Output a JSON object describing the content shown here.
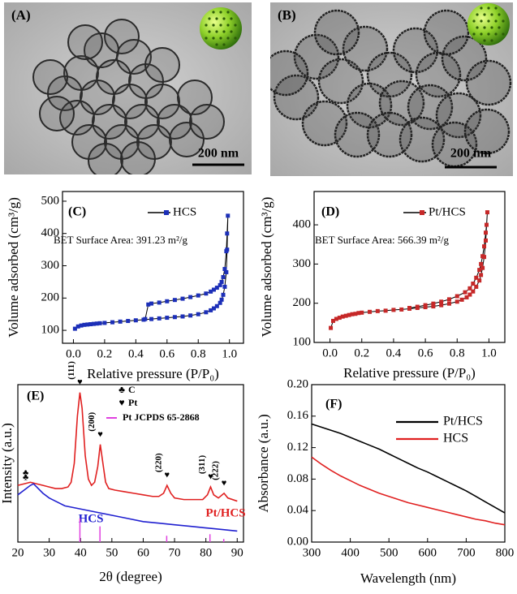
{
  "images": [
    {
      "label": "(A)",
      "scale_bar": "200 nm"
    },
    {
      "label": "(B)",
      "scale_bar": "200 nm"
    }
  ],
  "chart_data": [
    {
      "type": "line",
      "label": "(C)",
      "xlabel": "Relative pressure (P/P₀)",
      "ylabel": "Volume adsorbed (cm³/g)",
      "annotation": "BET Surface Area: 391.23 m²/g",
      "xlim": [
        -0.07,
        1.09
      ],
      "ylim": [
        60,
        530
      ],
      "xticks": [
        {
          "value": 0,
          "label": "0.0"
        },
        0.2,
        0.4,
        0.6,
        0.8,
        {
          "value": 1,
          "label": "1.0"
        }
      ],
      "yticks": [
        100,
        200,
        300,
        400,
        500
      ],
      "legend": "upper right",
      "series": [
        {
          "name": "HCS",
          "color": "#1c2fb8",
          "marker": "square",
          "x": [
            0.01,
            0.03,
            0.05,
            0.07,
            0.09,
            0.11,
            0.13,
            0.15,
            0.17,
            0.2,
            0.25,
            0.3,
            0.35,
            0.4,
            0.45,
            0.5,
            0.55,
            0.6,
            0.65,
            0.7,
            0.75,
            0.8,
            0.85,
            0.88,
            0.9,
            0.92,
            0.94,
            0.95,
            0.96,
            0.97,
            0.98,
            0.985,
            0.99,
            0.985,
            0.98,
            0.97,
            0.96,
            0.95,
            0.94,
            0.92,
            0.9,
            0.88,
            0.85,
            0.8,
            0.75,
            0.7,
            0.65,
            0.6,
            0.55,
            0.5,
            0.48,
            0.46
          ],
          "values": [
            105,
            112,
            115,
            117,
            118,
            119,
            120,
            121,
            122,
            123,
            125,
            127,
            129,
            131,
            133,
            135,
            137,
            139,
            141,
            143,
            146,
            150,
            156,
            162,
            168,
            175,
            185,
            195,
            210,
            235,
            280,
            350,
            455,
            400,
            345,
            290,
            265,
            250,
            240,
            232,
            226,
            220,
            214,
            208,
            203,
            198,
            194,
            190,
            186,
            183,
            180,
            135
          ]
        }
      ]
    },
    {
      "type": "line",
      "label": "(D)",
      "xlabel": "Relative pressure (P/P₀)",
      "ylabel": "Volume adsorbed (cm³/g)",
      "annotation": "BET Surface Area: 566.39 m²/g",
      "xlim": [
        -0.1,
        1.1
      ],
      "ylim": [
        100,
        485
      ],
      "xticks": [
        {
          "value": 0,
          "label": "0.0"
        },
        0.2,
        0.4,
        0.6,
        0.8,
        {
          "value": 1,
          "label": "1.0"
        }
      ],
      "yticks": [
        100,
        200,
        300,
        400
      ],
      "legend": "upper right",
      "series": [
        {
          "name": "Pt/HCS",
          "color": "#c62828",
          "marker": "square",
          "x": [
            0.005,
            0.02,
            0.04,
            0.06,
            0.08,
            0.1,
            0.12,
            0.14,
            0.16,
            0.18,
            0.2,
            0.25,
            0.3,
            0.35,
            0.4,
            0.45,
            0.5,
            0.55,
            0.6,
            0.65,
            0.7,
            0.75,
            0.8,
            0.83,
            0.86,
            0.88,
            0.9,
            0.92,
            0.94,
            0.95,
            0.96,
            0.97,
            0.98,
            0.99,
            0.985,
            0.98,
            0.97,
            0.96,
            0.95,
            0.94,
            0.92,
            0.9,
            0.88,
            0.85,
            0.8,
            0.75,
            0.7,
            0.65,
            0.6,
            0.55,
            0.5
          ],
          "values": [
            137,
            155,
            160,
            163,
            166,
            168,
            170,
            172,
            173,
            175,
            176,
            178,
            180,
            181,
            183,
            184,
            186,
            188,
            190,
            192,
            195,
            199,
            204,
            209,
            215,
            222,
            230,
            242,
            258,
            272,
            290,
            318,
            360,
            432,
            400,
            380,
            345,
            320,
            300,
            285,
            265,
            250,
            238,
            228,
            218,
            210,
            204,
            199,
            195,
            191,
            188
          ]
        }
      ]
    },
    {
      "type": "line",
      "label": "(E)",
      "xlabel": "2θ (degree)",
      "ylabel": "Intensity (a.u.)",
      "xlim": [
        20,
        92
      ],
      "ylim": [
        0,
        100
      ],
      "xticks": [
        20,
        30,
        40,
        50,
        60,
        70,
        80,
        90
      ],
      "legend": "inline",
      "series": [
        {
          "name": "Pt/HCS",
          "color": "#e02020",
          "x": [
            20,
            22,
            24,
            26,
            28,
            30,
            32,
            34,
            36,
            37,
            38,
            39,
            39.8,
            40.5,
            41.5,
            42.5,
            43.5,
            44.5,
            45.5,
            46.3,
            47,
            48,
            49,
            51,
            54,
            57,
            60,
            63,
            65,
            66.5,
            67.6,
            68.8,
            70,
            73,
            76,
            79,
            80.5,
            81.5,
            82.5,
            84,
            85.8,
            87,
            90
          ],
          "values": [
            36,
            37,
            38,
            37,
            36,
            35,
            34,
            34,
            35,
            38,
            50,
            80,
            95,
            85,
            55,
            40,
            36,
            38,
            48,
            62,
            52,
            38,
            34,
            33,
            32,
            31,
            30,
            29,
            29,
            31,
            36,
            31,
            28,
            27,
            27,
            27,
            30,
            35,
            30,
            28,
            31,
            28,
            26
          ]
        },
        {
          "name": "HCS",
          "color": "#2020d0",
          "x": [
            20,
            22,
            24,
            25,
            26,
            28,
            30,
            32,
            35,
            40,
            45,
            50,
            55,
            60,
            65,
            70,
            75,
            80,
            85,
            90
          ],
          "values": [
            30,
            33,
            36,
            37,
            35,
            31,
            28,
            26,
            23,
            21,
            19,
            17,
            15,
            13,
            12,
            11,
            10,
            9,
            8,
            7
          ]
        },
        {
          "name": "Pt JCPDS 65-2868",
          "color": "#e040e0",
          "style": "stick",
          "x": [
            39.8,
            46.2,
            67.5,
            81.3,
            85.7
          ],
          "values": [
            15,
            10,
            4,
            5,
            2
          ]
        }
      ],
      "phases": [
        {
          "symbol": "♣",
          "name": "C",
          "peaks": [
            23
          ]
        },
        {
          "symbol": "♥",
          "name": "Pt",
          "peaks": [
            39.8,
            46.3,
            67.6,
            81.5,
            85.8
          ],
          "hkl": [
            "(111)",
            "(200)",
            "(220)",
            "(311)",
            "(222)"
          ]
        }
      ]
    },
    {
      "type": "line",
      "label": "(F)",
      "xlabel": "Wavelength (nm)",
      "ylabel": "Absorbance (a.u.)",
      "xlim": [
        300,
        800
      ],
      "ylim": [
        0,
        0.2
      ],
      "xticks": [
        300,
        400,
        500,
        600,
        700,
        800
      ],
      "yticks": [
        {
          "value": 0,
          "label": "0.00"
        },
        {
          "value": 0.04,
          "label": "0.04"
        },
        {
          "value": 0.08,
          "label": "0.08"
        },
        {
          "value": 0.12,
          "label": "0.12"
        },
        {
          "value": 0.16,
          "label": "0.16"
        },
        {
          "value": 0.2,
          "label": "0.20"
        }
      ],
      "legend": "upper right",
      "series": [
        {
          "name": "Pt/HCS",
          "color": "#000000",
          "x": [
            300,
            325,
            350,
            375,
            400,
            425,
            450,
            475,
            500,
            525,
            550,
            575,
            600,
            625,
            650,
            675,
            700,
            725,
            750,
            775,
            800
          ],
          "values": [
            0.15,
            0.146,
            0.142,
            0.138,
            0.133,
            0.128,
            0.123,
            0.118,
            0.112,
            0.106,
            0.1,
            0.094,
            0.089,
            0.083,
            0.077,
            0.071,
            0.065,
            0.058,
            0.051,
            0.044,
            0.037
          ]
        },
        {
          "name": "HCS",
          "color": "#e02020",
          "x": [
            300,
            325,
            350,
            375,
            400,
            425,
            450,
            475,
            500,
            525,
            550,
            575,
            600,
            625,
            650,
            675,
            700,
            725,
            750,
            775,
            800
          ],
          "values": [
            0.108,
            0.099,
            0.091,
            0.084,
            0.078,
            0.072,
            0.067,
            0.062,
            0.058,
            0.054,
            0.05,
            0.047,
            0.044,
            0.041,
            0.038,
            0.035,
            0.032,
            0.029,
            0.027,
            0.024,
            0.022
          ]
        }
      ]
    }
  ]
}
